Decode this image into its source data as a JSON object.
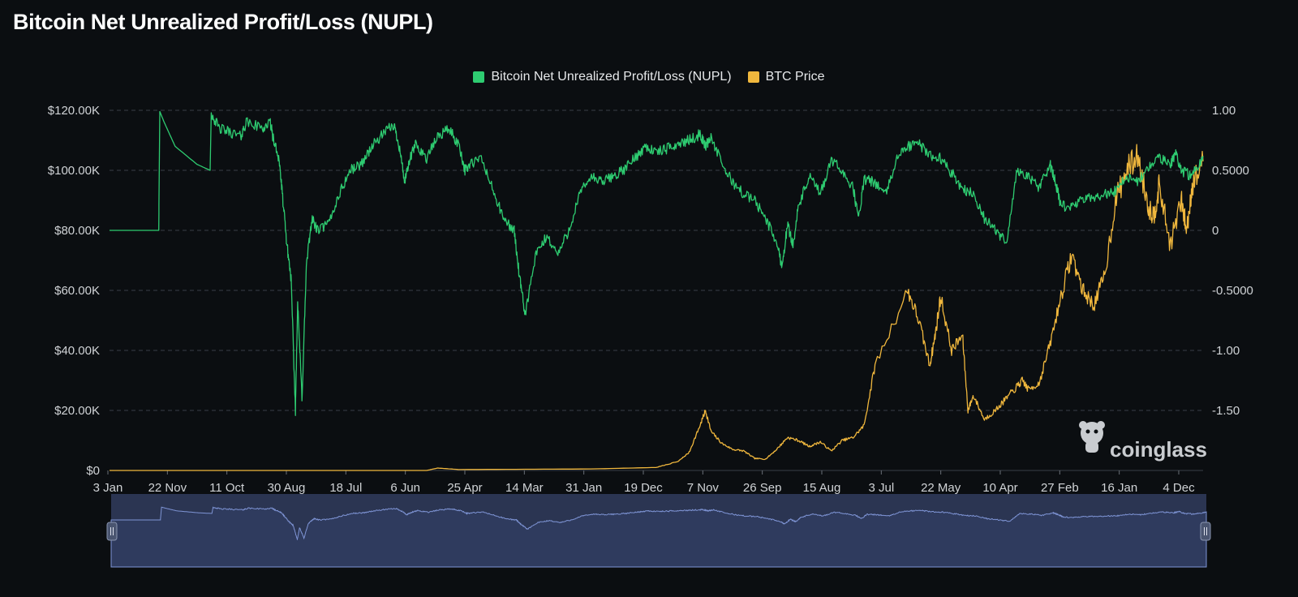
{
  "title": "Bitcoin Net Unrealized Profit/Loss (NUPL)",
  "watermark": "coinglass",
  "colors": {
    "background": "#0b0e11",
    "nupl": "#2ecc71",
    "price": "#f0b73d",
    "grid": "#3a3f46",
    "navigator_fill": "#2b3552",
    "navigator_line": "#7f95d6"
  },
  "chart_data": {
    "type": "line",
    "title": "Bitcoin Net Unrealized Profit/Loss (NUPL)",
    "legend_position": "top-center",
    "grid": true,
    "x_tick_labels": [
      "3 Jan",
      "22 Nov",
      "11 Oct",
      "30 Aug",
      "18 Jul",
      "6 Jun",
      "25 Apr",
      "14 Mar",
      "31 Jan",
      "19 Dec",
      "7 Nov",
      "26 Sep",
      "15 Aug",
      "3 Jul",
      "22 May",
      "10 Apr",
      "27 Feb",
      "16 Jan",
      "4 Dec"
    ],
    "y_left": {
      "ticks": [
        "$0",
        "$20.00K",
        "$40.00K",
        "$60.00K",
        "$80.00K",
        "$100.00K",
        "$120.00K"
      ],
      "ylim": [
        0,
        120000
      ]
    },
    "y_right": {
      "ticks": [
        "-1.50",
        "-1.00",
        "-0.5000",
        "0",
        "0.5000",
        "1.00"
      ],
      "ylim": [
        -2.0,
        1.0
      ]
    },
    "series": [
      {
        "name": "Bitcoin Net Unrealized Profit/Loss (NUPL)",
        "axis": "right",
        "x": [
          0,
          0.045,
          0.046,
          0.05,
          0.06,
          0.08,
          0.092,
          0.093,
          0.1,
          0.11,
          0.12,
          0.125,
          0.14,
          0.147,
          0.15,
          0.155,
          0.158,
          0.162,
          0.166,
          0.17,
          0.172,
          0.176,
          0.18,
          0.185,
          0.19,
          0.2,
          0.21,
          0.22,
          0.23,
          0.24,
          0.25,
          0.26,
          0.265,
          0.27,
          0.275,
          0.28,
          0.29,
          0.3,
          0.31,
          0.32,
          0.325,
          0.33,
          0.34,
          0.35,
          0.36,
          0.37,
          0.375,
          0.38,
          0.39,
          0.4,
          0.41,
          0.42,
          0.43,
          0.44,
          0.45,
          0.46,
          0.47,
          0.48,
          0.49,
          0.5,
          0.51,
          0.52,
          0.53,
          0.54,
          0.545,
          0.55,
          0.56,
          0.57,
          0.58,
          0.59,
          0.6,
          0.61,
          0.615,
          0.62,
          0.625,
          0.63,
          0.64,
          0.65,
          0.66,
          0.67,
          0.68,
          0.685,
          0.69,
          0.7,
          0.71,
          0.72,
          0.73,
          0.74,
          0.75,
          0.76,
          0.77,
          0.78,
          0.79,
          0.8,
          0.81,
          0.82,
          0.83,
          0.84,
          0.85,
          0.86,
          0.865,
          0.87,
          0.88,
          0.89,
          0.9,
          0.91,
          0.92,
          0.93,
          0.94,
          0.95,
          0.96,
          0.97,
          0.975,
          0.98,
          0.99,
          1.0
        ],
        "y": [
          0.0,
          0.0,
          0.99,
          0.9,
          0.7,
          0.55,
          0.5,
          0.98,
          0.85,
          0.82,
          0.78,
          0.9,
          0.85,
          0.9,
          0.75,
          0.6,
          0.3,
          -0.1,
          -0.4,
          -1.5,
          -0.6,
          -1.4,
          -0.3,
          0.1,
          0.0,
          0.05,
          0.3,
          0.5,
          0.55,
          0.7,
          0.8,
          0.88,
          0.7,
          0.4,
          0.6,
          0.72,
          0.6,
          0.78,
          0.85,
          0.7,
          0.5,
          0.55,
          0.6,
          0.35,
          0.1,
          0.0,
          -0.4,
          -0.7,
          -0.2,
          -0.05,
          -0.2,
          0.0,
          0.3,
          0.45,
          0.4,
          0.45,
          0.5,
          0.6,
          0.7,
          0.65,
          0.68,
          0.72,
          0.75,
          0.8,
          0.7,
          0.78,
          0.55,
          0.4,
          0.3,
          0.25,
          0.1,
          -0.1,
          -0.3,
          0.05,
          -0.12,
          0.2,
          0.45,
          0.3,
          0.58,
          0.5,
          0.35,
          0.1,
          0.42,
          0.4,
          0.3,
          0.6,
          0.7,
          0.72,
          0.63,
          0.6,
          0.48,
          0.35,
          0.3,
          0.1,
          0.0,
          -0.1,
          0.5,
          0.45,
          0.35,
          0.55,
          0.4,
          0.2,
          0.2,
          0.25,
          0.28,
          0.3,
          0.33,
          0.45,
          0.4,
          0.52,
          0.6,
          0.55,
          0.65,
          0.5,
          0.45,
          0.62
        ]
      },
      {
        "name": "BTC Price",
        "axis": "left",
        "x": [
          0,
          0.29,
          0.3,
          0.32,
          0.44,
          0.5,
          0.52,
          0.53,
          0.54,
          0.545,
          0.55,
          0.56,
          0.57,
          0.58,
          0.59,
          0.6,
          0.61,
          0.62,
          0.63,
          0.64,
          0.65,
          0.66,
          0.67,
          0.68,
          0.69,
          0.7,
          0.73,
          0.74,
          0.75,
          0.755,
          0.76,
          0.77,
          0.78,
          0.785,
          0.79,
          0.8,
          0.81,
          0.82,
          0.83,
          0.835,
          0.84,
          0.85,
          0.86,
          0.87,
          0.88,
          0.89,
          0.9,
          0.91,
          0.92,
          0.93,
          0.94,
          0.95,
          0.955,
          0.96,
          0.97,
          0.98,
          0.985,
          0.99,
          1.0
        ],
        "y": [
          0,
          0,
          800,
          300,
          500,
          1000,
          3000,
          6000,
          15000,
          20000,
          13000,
          9000,
          7000,
          6500,
          4000,
          3800,
          7000,
          11000,
          10000,
          8000,
          9500,
          6500,
          10000,
          11000,
          15000,
          35000,
          60000,
          50000,
          35000,
          45000,
          58000,
          40000,
          45000,
          20000,
          25000,
          17000,
          20000,
          24000,
          28000,
          30000,
          27000,
          29000,
          42000,
          58000,
          72000,
          60000,
          55000,
          65000,
          90000,
          100000,
          105000,
          88000,
          85000,
          95000,
          75000,
          90000,
          80000,
          95000,
          103000
        ]
      }
    ]
  },
  "navigator": {
    "left_handle": "left-handle",
    "right_handle": "right-handle"
  }
}
